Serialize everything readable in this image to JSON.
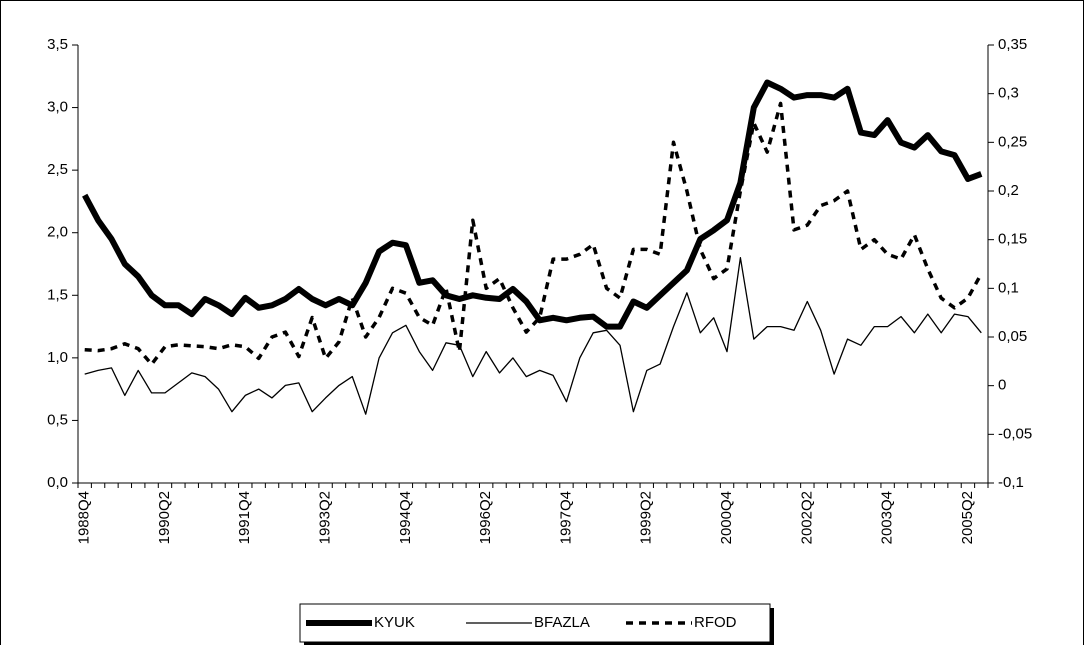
{
  "chart_data": {
    "type": "line",
    "categories": [
      "1988Q4",
      null,
      null,
      null,
      null,
      null,
      "1990Q2",
      null,
      null,
      null,
      null,
      null,
      "1991Q4",
      null,
      null,
      null,
      null,
      null,
      "1993Q2",
      null,
      null,
      null,
      null,
      null,
      "1994Q4",
      null,
      null,
      null,
      null,
      null,
      "1996Q2",
      null,
      null,
      null,
      null,
      null,
      "1997Q4",
      null,
      null,
      null,
      null,
      null,
      "1999Q2",
      null,
      null,
      null,
      null,
      null,
      "2000Q4",
      null,
      null,
      null,
      null,
      null,
      "2002Q2",
      null,
      null,
      null,
      null,
      null,
      "2003Q4",
      null,
      null,
      null,
      null,
      null,
      "2005Q2",
      null
    ],
    "series": [
      {
        "name": "KYUK",
        "color": "#000000",
        "values": [
          2.3,
          2.1,
          1.95,
          1.75,
          1.65,
          1.5,
          1.42,
          1.42,
          1.35,
          1.47,
          1.42,
          1.35,
          1.48,
          1.4,
          1.42,
          1.47,
          1.55,
          1.47,
          1.42,
          1.47,
          1.42,
          1.6,
          1.85,
          1.92,
          1.9,
          1.6,
          1.62,
          1.5,
          1.47,
          1.5,
          1.48,
          1.47,
          1.55,
          1.45,
          1.3,
          1.32,
          1.3,
          1.32,
          1.33,
          1.25,
          1.25,
          1.45,
          1.4,
          1.5,
          1.6,
          1.7,
          1.95,
          2.02,
          2.1,
          2.4,
          3.0,
          3.2,
          3.15,
          3.08,
          3.1,
          3.1,
          3.08,
          3.15,
          2.8,
          2.78,
          2.9,
          2.72,
          2.68,
          2.78,
          2.65,
          2.62,
          2.43,
          2.47
        ]
      },
      {
        "name": "BFAZLA",
        "color": "#000000",
        "values": [
          0.87,
          0.9,
          0.92,
          0.7,
          0.9,
          0.72,
          0.72,
          0.8,
          0.88,
          0.85,
          0.75,
          0.57,
          0.7,
          0.75,
          0.68,
          0.78,
          0.8,
          0.57,
          0.68,
          0.78,
          0.85,
          0.55,
          1.0,
          1.2,
          1.26,
          1.05,
          0.9,
          1.12,
          1.1,
          0.85,
          1.05,
          0.88,
          1.0,
          0.85,
          0.9,
          0.86,
          0.65,
          1.0,
          1.2,
          1.22,
          1.1,
          0.57,
          0.9,
          0.95,
          1.25,
          1.52,
          1.2,
          1.32,
          1.05,
          1.8,
          1.15,
          1.25,
          1.25,
          1.22,
          1.45,
          1.22,
          0.87,
          1.15,
          1.1,
          1.25,
          1.25,
          1.33,
          1.2,
          1.35,
          1.2,
          1.35,
          1.33,
          1.2
        ]
      },
      {
        "name": "RFOD",
        "color": "#000000",
        "axis": "y2",
        "values": [
          0.037,
          0.036,
          0.038,
          0.043,
          0.038,
          0.022,
          0.04,
          0.042,
          0.041,
          0.04,
          0.038,
          0.042,
          0.04,
          0.028,
          0.05,
          0.055,
          0.03,
          0.07,
          0.028,
          0.045,
          0.09,
          0.05,
          0.07,
          0.1,
          0.095,
          0.07,
          0.062,
          0.1,
          0.035,
          0.17,
          0.1,
          0.11,
          0.08,
          0.055,
          0.07,
          0.13,
          0.13,
          0.135,
          0.145,
          0.1,
          0.09,
          0.14,
          0.14,
          0.135,
          0.25,
          0.2,
          0.14,
          0.11,
          0.12,
          0.2,
          0.27,
          0.24,
          0.29,
          0.16,
          0.165,
          0.185,
          0.19,
          0.2,
          0.14,
          0.15,
          0.135,
          0.13,
          0.155,
          0.12,
          0.09,
          0.08,
          0.09,
          0.115
        ]
      }
    ],
    "ylim": [
      0,
      3.5
    ],
    "yticks": [
      {
        "value": 0,
        "label": "0,0"
      },
      {
        "value": 0.5,
        "label": "0,5"
      },
      {
        "value": 1,
        "label": "1,0"
      },
      {
        "value": 1.5,
        "label": "1,5"
      },
      {
        "value": 2,
        "label": "2,0"
      },
      {
        "value": 2.5,
        "label": "2,5"
      },
      {
        "value": 3,
        "label": "3,0"
      },
      {
        "value": 3.5,
        "label": "3,5"
      }
    ],
    "y2lim": [
      -0.1,
      0.35
    ],
    "y2ticks": [
      {
        "value": -0.1,
        "label": "-0,1"
      },
      {
        "value": -0.05,
        "label": "-0,05"
      },
      0,
      {
        "value": 0.05,
        "label": "0,05"
      },
      {
        "value": 0.1,
        "label": "0,1"
      },
      {
        "value": 0.15,
        "label": "0,15"
      },
      {
        "value": 0.2,
        "label": "0,2"
      },
      {
        "value": 0.25,
        "label": "0,25"
      },
      {
        "value": 0.3,
        "label": "0,3"
      },
      {
        "value": 0.35,
        "label": "0,35"
      }
    ],
    "legend": "bottom",
    "grid": false
  }
}
